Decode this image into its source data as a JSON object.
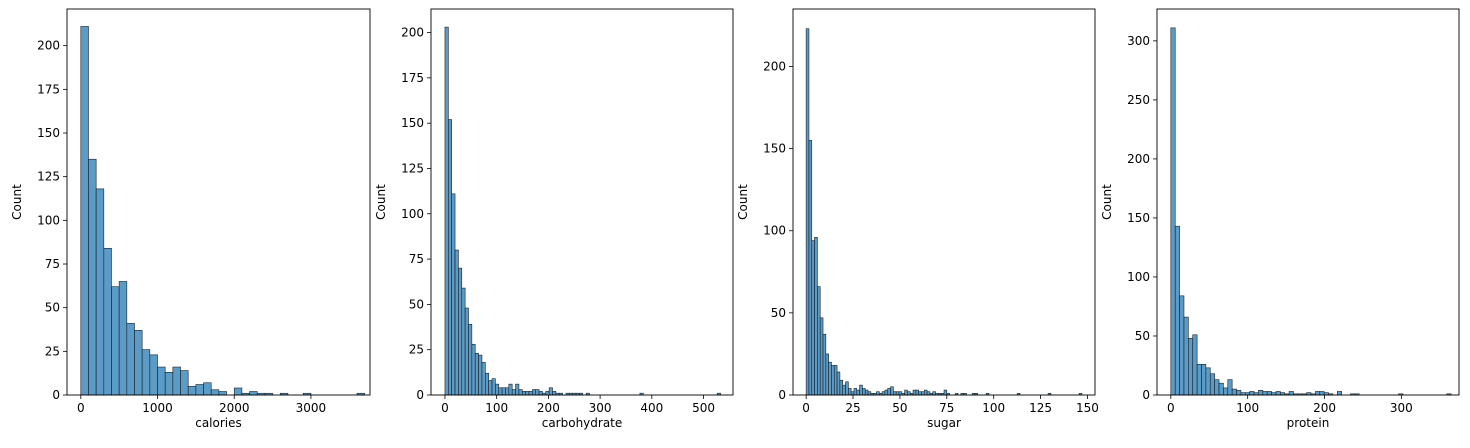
{
  "colors": {
    "bar_fill": "#5a9bc8",
    "bar_edge": "#1f1f1f",
    "axes": "#000000"
  },
  "chart_data": [
    {
      "type": "bar",
      "subtype": "histogram",
      "xlabel": "calories",
      "ylabel": "Count",
      "xlim": [
        -180,
        3770
      ],
      "ylim": [
        0,
        221
      ],
      "xticks": [
        0,
        1000,
        2000,
        3000
      ],
      "yticks": [
        0,
        25,
        50,
        75,
        100,
        125,
        150,
        175,
        200
      ],
      "bin_start": 0,
      "bin_width": 100,
      "counts": [
        211,
        135,
        118,
        84,
        62,
        65,
        41,
        37,
        26,
        23,
        16,
        13,
        16,
        14,
        5,
        6,
        7,
        3,
        2,
        0,
        4,
        1,
        2,
        1,
        1,
        0,
        1,
        0,
        0,
        1,
        0,
        0,
        0,
        0,
        0,
        0,
        1
      ],
      "grid": false
    },
    {
      "type": "bar",
      "subtype": "histogram",
      "xlabel": "carbohydrate",
      "ylabel": "Count",
      "xlim": [
        -27,
        557
      ],
      "ylim": [
        0,
        213
      ],
      "xticks": [
        0,
        100,
        200,
        300,
        400,
        500
      ],
      "yticks": [
        0,
        25,
        50,
        75,
        100,
        125,
        150,
        175,
        200
      ],
      "bin_start": 0,
      "bin_width": 6.5,
      "counts": [
        203,
        152,
        111,
        80,
        70,
        59,
        48,
        39,
        28,
        23,
        22,
        18,
        12,
        8,
        9,
        6,
        4,
        4,
        4,
        6,
        3,
        6,
        3,
        2,
        2,
        2,
        3,
        3,
        2,
        1,
        2,
        4,
        2,
        1,
        1,
        0,
        1,
        1,
        1,
        1,
        1,
        0,
        1,
        0,
        0,
        0,
        0,
        0,
        0,
        0,
        0,
        0,
        0,
        0,
        0,
        0,
        0,
        0,
        1,
        0,
        0,
        0,
        0,
        0,
        0,
        0,
        0,
        0,
        0,
        0,
        0,
        0,
        0,
        0,
        0,
        0,
        0,
        0,
        0,
        0,
        0,
        1
      ],
      "grid": false
    },
    {
      "type": "bar",
      "subtype": "histogram",
      "xlabel": "sugar",
      "ylabel": "Count",
      "xlim": [
        -7,
        154
      ],
      "ylim": [
        0,
        235
      ],
      "xticks": [
        0,
        25,
        50,
        75,
        100,
        125,
        150
      ],
      "yticks": [
        0,
        50,
        100,
        150,
        200
      ],
      "bin_start": 0,
      "bin_width": 1.5,
      "counts": [
        223,
        155,
        94,
        96,
        66,
        47,
        37,
        25,
        20,
        18,
        18,
        14,
        9,
        6,
        8,
        4,
        2,
        4,
        3,
        6,
        4,
        3,
        2,
        1,
        1,
        2,
        1,
        2,
        3,
        4,
        5,
        2,
        2,
        2,
        1,
        3,
        2,
        1,
        3,
        3,
        2,
        2,
        3,
        2,
        1,
        2,
        1,
        1,
        1,
        3,
        1,
        0,
        0,
        1,
        0,
        1,
        1,
        0,
        0,
        1,
        1,
        0,
        0,
        0,
        1,
        0,
        0,
        0,
        0,
        0,
        0,
        0,
        0,
        0,
        0,
        1,
        0,
        0,
        0,
        0,
        0,
        0,
        0,
        0,
        0,
        0,
        1,
        0,
        0,
        0,
        0,
        0,
        0,
        0,
        0,
        0,
        0,
        1
      ],
      "grid": false
    },
    {
      "type": "bar",
      "subtype": "histogram",
      "xlabel": "protein",
      "ylabel": "Count",
      "xlim": [
        -18,
        375
      ],
      "ylim": [
        0,
        327
      ],
      "xticks": [
        0,
        100,
        200,
        300
      ],
      "yticks": [
        0,
        50,
        100,
        150,
        200,
        250,
        300
      ],
      "bin_start": 0,
      "bin_width": 5.7,
      "counts": [
        311,
        143,
        84,
        66,
        48,
        51,
        26,
        26,
        23,
        18,
        13,
        10,
        6,
        13,
        5,
        4,
        2,
        2,
        3,
        2,
        4,
        3,
        3,
        2,
        3,
        2,
        1,
        3,
        1,
        1,
        1,
        2,
        1,
        3,
        3,
        2,
        1,
        0,
        3,
        0,
        0,
        1,
        1,
        0,
        0,
        0,
        0,
        0,
        0,
        0,
        0,
        0,
        1,
        0,
        0,
        0,
        0,
        0,
        0,
        0,
        0,
        0,
        0,
        1
      ],
      "grid": false
    }
  ]
}
